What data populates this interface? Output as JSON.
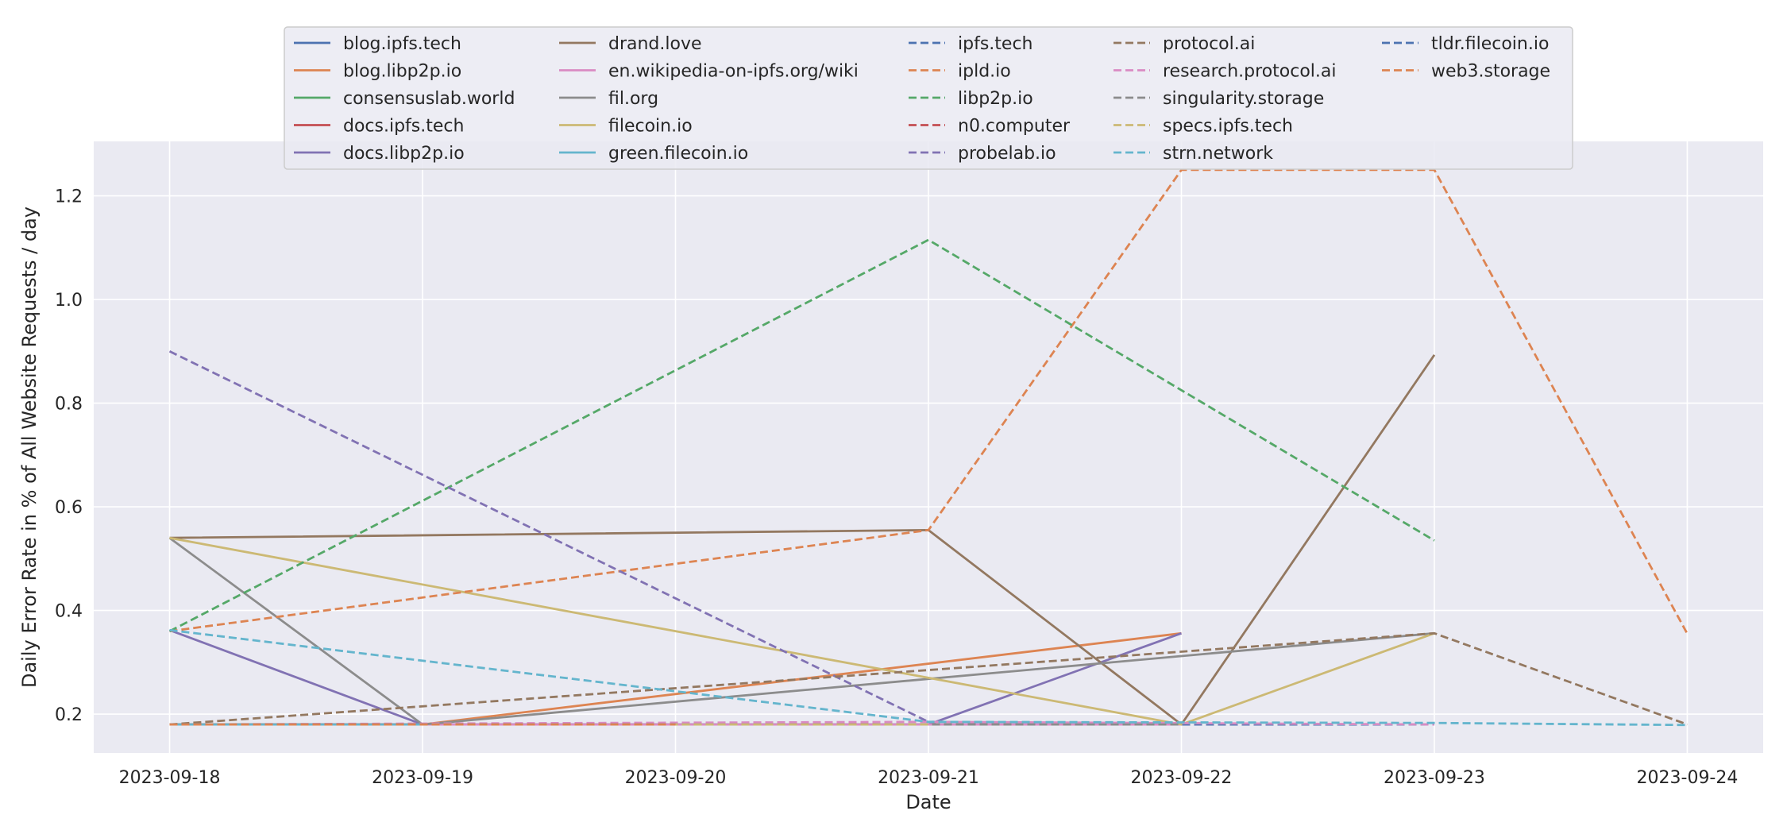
{
  "chart_data": {
    "type": "line",
    "title": "",
    "xlabel": "Date",
    "ylabel": "Daily Error Rate in % of All Website Requests / day",
    "x": [
      "2023-09-18",
      "2023-09-19",
      "2023-09-20",
      "2023-09-21",
      "2023-09-22",
      "2023-09-23",
      "2023-09-24"
    ],
    "xlim": [
      "2023-09-17.7",
      "2023-09-24.3"
    ],
    "ylim": [
      0.125,
      1.305
    ],
    "yticks": [
      0.2,
      0.4,
      0.6,
      0.8,
      1.0,
      1.2
    ],
    "ytick_labels": [
      "0.2",
      "0.4",
      "0.6",
      "0.8",
      "1.0",
      "1.2"
    ],
    "grid": true,
    "legend_position": "top-center",
    "series": [
      {
        "name": "blog.ipfs.tech",
        "color": "#4c72b0",
        "dash": "solid",
        "points": [
          [
            "2023-09-18",
            0.18
          ],
          [
            "2023-09-19",
            0.18
          ],
          [
            "2023-09-21",
            0.18
          ],
          [
            "2023-09-22",
            0.18
          ]
        ]
      },
      {
        "name": "blog.libp2p.io",
        "color": "#dd8452",
        "dash": "solid",
        "points": [
          [
            "2023-09-19",
            0.18
          ],
          [
            "2023-09-22",
            0.356
          ]
        ]
      },
      {
        "name": "consensuslab.world",
        "color": "#55a868",
        "dash": "solid",
        "points": [
          [
            "2023-09-18",
            0.18
          ],
          [
            "2023-09-19",
            0.18
          ]
        ]
      },
      {
        "name": "docs.ipfs.tech",
        "color": "#c44e52",
        "dash": "solid",
        "points": [
          [
            "2023-09-18",
            0.18
          ],
          [
            "2023-09-19",
            0.18
          ]
        ]
      },
      {
        "name": "docs.libp2p.io",
        "color": "#8172b3",
        "dash": "solid",
        "points": [
          [
            "2023-09-18",
            0.362
          ],
          [
            "2023-09-19",
            0.18
          ],
          [
            "2023-09-21",
            0.18
          ],
          [
            "2023-09-22",
            0.356
          ]
        ]
      },
      {
        "name": "drand.love",
        "color": "#937860",
        "dash": "solid",
        "points": [
          [
            "2023-09-18",
            0.54
          ],
          [
            "2023-09-21",
            0.555
          ],
          [
            "2023-09-22",
            0.18
          ],
          [
            "2023-09-23",
            0.893
          ]
        ]
      },
      {
        "name": "en.wikipedia-on-ipfs.org/wiki",
        "color": "#da8bc3",
        "dash": "solid",
        "points": [
          [
            "2023-09-19",
            0.18
          ],
          [
            "2023-09-22",
            0.18
          ]
        ]
      },
      {
        "name": "fil.org",
        "color": "#8c8c8c",
        "dash": "solid",
        "points": [
          [
            "2023-09-18",
            0.54
          ],
          [
            "2023-09-19",
            0.18
          ],
          [
            "2023-09-23",
            0.356
          ]
        ]
      },
      {
        "name": "filecoin.io",
        "color": "#ccb974",
        "dash": "solid",
        "points": [
          [
            "2023-09-18",
            0.54
          ],
          [
            "2023-09-22",
            0.18
          ],
          [
            "2023-09-23",
            0.356
          ]
        ]
      },
      {
        "name": "green.filecoin.io",
        "color": "#64b5cd",
        "dash": "solid",
        "points": [
          [
            "2023-09-18",
            0.18
          ],
          [
            "2023-09-19",
            0.18
          ]
        ]
      },
      {
        "name": "ipfs.tech",
        "color": "#4c72b0",
        "dash": "dashed",
        "points": [
          [
            "2023-09-18",
            0.18
          ],
          [
            "2023-09-23",
            0.18
          ]
        ]
      },
      {
        "name": "ipld.io",
        "color": "#dd8452",
        "dash": "dashed",
        "points": [
          [
            "2023-09-18",
            0.36
          ],
          [
            "2023-09-21",
            0.555
          ],
          [
            "2023-09-22",
            1.25
          ],
          [
            "2023-09-23",
            1.25
          ],
          [
            "2023-09-24",
            0.355
          ]
        ]
      },
      {
        "name": "libp2p.io",
        "color": "#55a868",
        "dash": "dashed",
        "points": [
          [
            "2023-09-18",
            0.36
          ],
          [
            "2023-09-21",
            1.115
          ],
          [
            "2023-09-23",
            0.535
          ]
        ]
      },
      {
        "name": "n0.computer",
        "color": "#c44e52",
        "dash": "dashed",
        "points": [
          [
            "2023-09-18",
            0.18
          ],
          [
            "2023-09-22",
            0.18
          ]
        ]
      },
      {
        "name": "probelab.io",
        "color": "#8172b3",
        "dash": "dashed",
        "points": [
          [
            "2023-09-18",
            0.9
          ],
          [
            "2023-09-21",
            0.185
          ]
        ]
      },
      {
        "name": "protocol.ai",
        "color": "#937860",
        "dash": "dashed",
        "points": [
          [
            "2023-09-18",
            0.18
          ],
          [
            "2023-09-21",
            0.285
          ],
          [
            "2023-09-23",
            0.356
          ],
          [
            "2023-09-24",
            0.18
          ]
        ]
      },
      {
        "name": "research.protocol.ai",
        "color": "#da8bc3",
        "dash": "dashed",
        "points": [
          [
            "2023-09-18",
            0.18
          ],
          [
            "2023-09-21",
            0.185
          ],
          [
            "2023-09-23",
            0.18
          ]
        ]
      },
      {
        "name": "singularity.storage",
        "color": "#8c8c8c",
        "dash": "dashed",
        "points": [
          [
            "2023-09-18",
            0.18
          ],
          [
            "2023-09-22",
            0.18
          ]
        ]
      },
      {
        "name": "specs.ipfs.tech",
        "color": "#ccb974",
        "dash": "dashed",
        "points": [
          [
            "2023-09-18",
            0.18
          ],
          [
            "2023-09-21",
            0.18
          ]
        ]
      },
      {
        "name": "strn.network",
        "color": "#64b5cd",
        "dash": "dashed",
        "points": [
          [
            "2023-09-18",
            0.362
          ],
          [
            "2023-09-21",
            0.185
          ],
          [
            "2023-09-23",
            0.183
          ],
          [
            "2023-09-24",
            0.179
          ]
        ]
      },
      {
        "name": "tldr.filecoin.io",
        "color": "#4c72b0",
        "dash": "dashed",
        "points": [
          [
            "2023-09-18",
            0.18
          ],
          [
            "2023-09-20",
            0.18
          ]
        ]
      },
      {
        "name": "web3.storage",
        "color": "#dd8452",
        "dash": "dashed",
        "points": [
          [
            "2023-09-18",
            0.18
          ],
          [
            "2023-09-20",
            0.18
          ]
        ]
      }
    ]
  }
}
